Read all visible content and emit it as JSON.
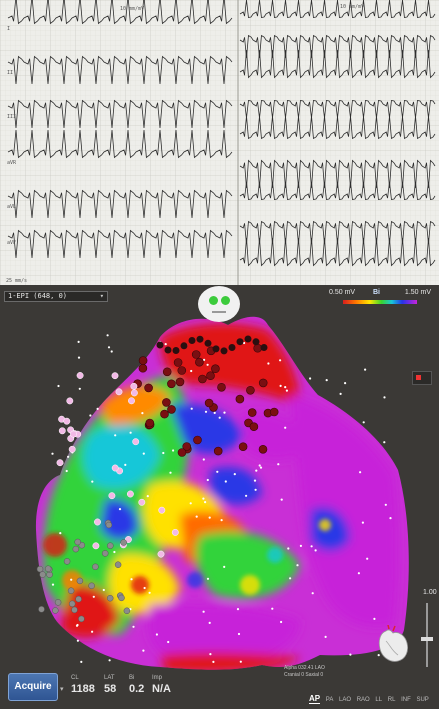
{
  "ecg": {
    "scale_left": "10 mm/mV",
    "scale_right": "10 mm/mV",
    "left_leads": [
      "I",
      "II",
      "III",
      "aVR",
      "aVL",
      "aVF"
    ],
    "speed_label": "25 mm/s"
  },
  "map": {
    "name": "1-EPI (648, 0)",
    "colorbar": {
      "min": "0.50 mV",
      "type": "Bi",
      "max": "1.50 mV",
      "colors": [
        "#d81e1e",
        "#ff7a00",
        "#ffe600",
        "#39d42e",
        "#19c6d9",
        "#2534e8",
        "#c724d9"
      ]
    },
    "zoom_label": "1.00"
  },
  "status": {
    "acquire_label": "Acquire",
    "cl_label": "CL",
    "cl_value": "1188",
    "lat_label": "LAT",
    "lat_value": "58",
    "bi_label": "Bi",
    "bi_value": "0.2",
    "imp_label": "Imp",
    "imp_value": "N/A"
  },
  "view": {
    "readout_line1": "Alpha 032.41   LAO",
    "readout_line2": "Cranial  0    Saxial  0",
    "tabs": [
      "AP",
      "PA",
      "LAO",
      "RAO",
      "LL",
      "RL",
      "INF",
      "SUP"
    ],
    "active_tab": "AP"
  }
}
